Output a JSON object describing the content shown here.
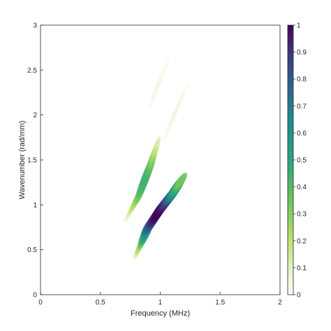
{
  "chart_data": {
    "type": "heatmap",
    "title": "",
    "xlabel": "Frequency (MHz)",
    "ylabel": "Wavenumber (rad/mm)",
    "xlim": [
      0,
      2
    ],
    "ylim": [
      0,
      3
    ],
    "xticks": [
      0,
      0.5,
      1,
      1.5,
      2
    ],
    "xtick_labels": [
      "0",
      "0.5",
      "1",
      "1.5",
      "2"
    ],
    "yticks": [
      0,
      0.5,
      1,
      1.5,
      2,
      2.5,
      3
    ],
    "ytick_labels": [
      "0",
      "0.5",
      "1",
      "1.5",
      "2",
      "2.5",
      "3"
    ],
    "colorbar": {
      "range": [
        0,
        1
      ],
      "ticks": [
        0,
        0.1,
        0.2,
        0.3,
        0.4,
        0.5,
        0.6,
        0.7,
        0.8,
        0.9,
        1
      ],
      "tick_labels": [
        "0",
        "0.1",
        "0.2",
        "0.3",
        "0.4",
        "0.5",
        "0.6",
        "0.7",
        "0.8",
        "0.9",
        "1"
      ],
      "colormap": "viridis_r (white at 0, dark purple at 1)"
    },
    "grid": false,
    "ridges": [
      {
        "points": [
          [
            0.8,
            0.45
          ],
          [
            0.9,
            0.75
          ],
          [
            1.0,
            0.95
          ],
          [
            1.1,
            1.12
          ],
          [
            1.18,
            1.28
          ]
        ],
        "peak_value": 1.0,
        "peak_at": [
          1.0,
          0.95
        ]
      },
      {
        "points": [
          [
            0.72,
            0.85
          ],
          [
            0.82,
            1.1
          ],
          [
            0.92,
            1.45
          ],
          [
            0.98,
            1.7
          ]
        ],
        "peak_value": 0.45,
        "peak_at": [
          0.88,
          1.3
        ]
      },
      {
        "points": [
          [
            1.02,
            1.7
          ],
          [
            1.1,
            1.95
          ],
          [
            1.18,
            2.2
          ],
          [
            1.25,
            2.4
          ]
        ],
        "peak_value": 0.06,
        "peak_at": [
          1.12,
          2.05
        ]
      },
      {
        "points": [
          [
            0.9,
            2.05
          ],
          [
            0.97,
            2.3
          ],
          [
            1.05,
            2.55
          ],
          [
            1.1,
            2.7
          ]
        ],
        "peak_value": 0.05,
        "peak_at": [
          0.98,
          2.35
        ]
      }
    ]
  }
}
